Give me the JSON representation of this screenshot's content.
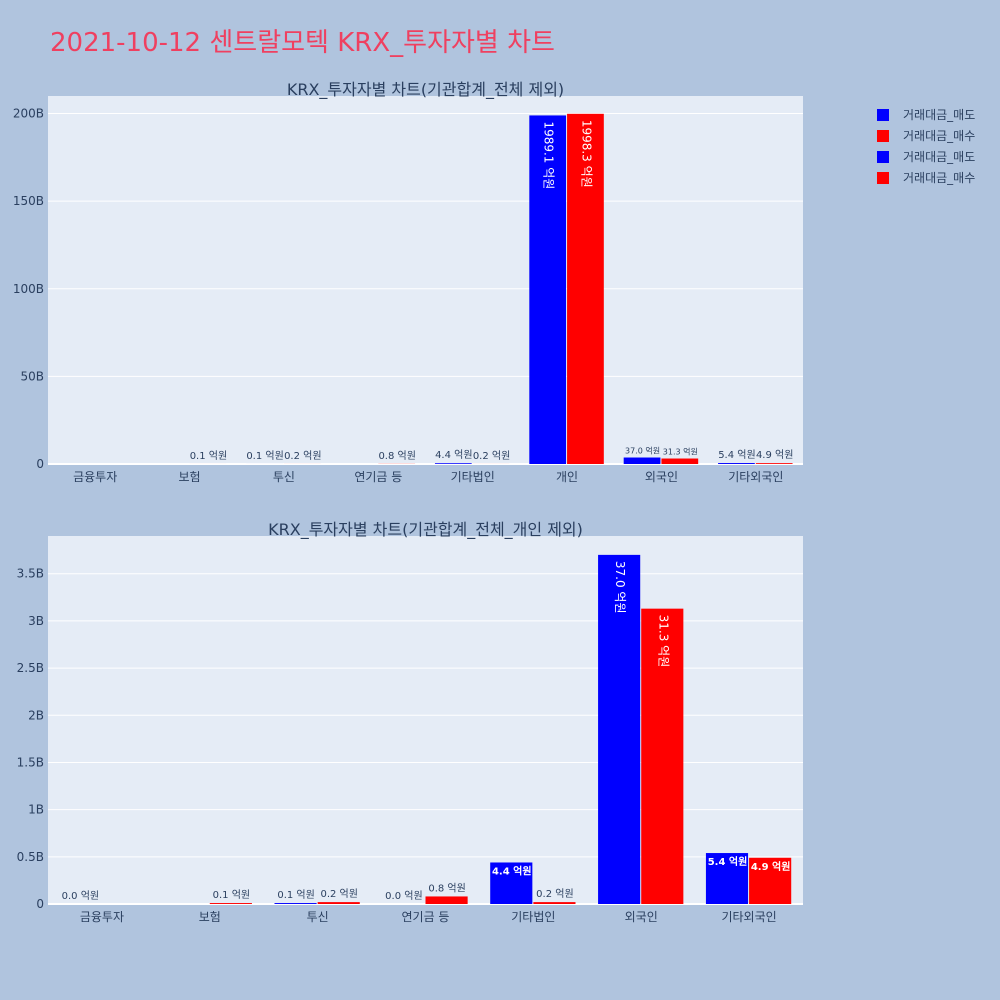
{
  "page_title": "2021-10-12 센트랄모텍 KRX_투자자별 차트",
  "colors": {
    "sell": "#0000ff",
    "buy": "#ff0000",
    "plot_bg": "#e5ecf6",
    "page_bg": "#b0c4de",
    "title": "#ef4060"
  },
  "legend": {
    "placement": "top-right",
    "items": [
      {
        "label": "거래대금_매도",
        "color": "#0000ff"
      },
      {
        "label": "거래대금_매수",
        "color": "#ff0000"
      },
      {
        "label": "거래대금_매도",
        "color": "#0000ff"
      },
      {
        "label": "거래대금_매수",
        "color": "#ff0000"
      }
    ]
  },
  "chart_data": [
    {
      "type": "bar",
      "title": "KRX_투자자별 차트(기관합계_전체 제외)",
      "categories": [
        "금융투자",
        "보험",
        "투신",
        "연기금 등",
        "기타법인",
        "개인",
        "외국인",
        "기타외국인"
      ],
      "ylim": [
        0,
        210
      ],
      "y_unit": "B",
      "yticks": [
        0,
        50,
        100,
        150,
        200
      ],
      "ytick_labels": [
        "0",
        "50B",
        "100B",
        "150B",
        "200B"
      ],
      "grid": true,
      "series": [
        {
          "name": "거래대금_매도",
          "values": [
            0,
            0,
            0.01,
            0,
            0.44,
            198.91,
            3.7,
            0.54
          ],
          "labels": [
            "",
            "",
            "0.1 억원",
            "",
            "4.4 억원",
            "1989.1 억원",
            "37.0 억원",
            "5.4 억원"
          ]
        },
        {
          "name": "거래대금_매수",
          "values": [
            0,
            0.01,
            0.02,
            0.08,
            0.02,
            199.83,
            3.13,
            0.49
          ],
          "labels": [
            "",
            "0.1 억원",
            "0.2 억원",
            "0.8 억원",
            "0.2 억원",
            "1998.3 억원",
            "31.3 억원",
            "4.9 억원"
          ]
        }
      ]
    },
    {
      "type": "bar",
      "title": "KRX_투자자별 차트(기관합계_전체_개인 제외)",
      "categories": [
        "금융투자",
        "보험",
        "투신",
        "연기금 등",
        "기타법인",
        "외국인",
        "기타외국인"
      ],
      "ylim": [
        0,
        3.9
      ],
      "y_unit": "B",
      "yticks": [
        0,
        0.5,
        1,
        1.5,
        2,
        2.5,
        3,
        3.5
      ],
      "ytick_labels": [
        "0",
        "0.5B",
        "1B",
        "1.5B",
        "2B",
        "2.5B",
        "3B",
        "3.5B"
      ],
      "grid": true,
      "series": [
        {
          "name": "거래대금_매도",
          "values": [
            0,
            0,
            0.01,
            0,
            0.44,
            3.7,
            0.54
          ],
          "labels": [
            "0.0 억원",
            "",
            "0.1 억원",
            "0.0 억원",
            "4.4 억원",
            "37.0 억원",
            "5.4 억원"
          ]
        },
        {
          "name": "거래대금_매수",
          "values": [
            0,
            0.01,
            0.02,
            0.08,
            0.02,
            3.13,
            0.49
          ],
          "labels": [
            "",
            "0.1 억원",
            "0.2 억원",
            "0.8 억원",
            "0.2 억원",
            "31.3 억원",
            "4.9 억원"
          ]
        }
      ]
    }
  ]
}
